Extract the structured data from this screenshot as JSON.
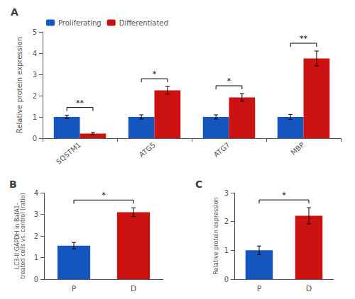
{
  "chart_data": [
    {
      "type": "bar",
      "title": "A",
      "categories": [
        "SQSTM1",
        "ATG5",
        "ATG7",
        "MBP"
      ],
      "series": [
        {
          "name": "Proliferating",
          "color": "#1555c0",
          "values": [
            1.0,
            1.0,
            1.0,
            1.0
          ],
          "errors": [
            0.08,
            0.1,
            0.1,
            0.12
          ]
        },
        {
          "name": "Differentiated",
          "color": "#cc1111",
          "values": [
            0.22,
            2.25,
            1.92,
            3.75
          ],
          "errors": [
            0.05,
            0.18,
            0.18,
            0.35
          ]
        }
      ],
      "annotations": [
        "**",
        "*",
        "*",
        "**"
      ],
      "ylabel": "Relative protein expression",
      "ylim": [
        0,
        5
      ],
      "yticks": [
        0,
        1,
        2,
        3,
        4,
        5
      ],
      "legend": "upper left",
      "grid": false
    },
    {
      "type": "bar",
      "title": "B",
      "categories": [
        "P",
        "D"
      ],
      "values": [
        1.55,
        3.1
      ],
      "errors": [
        0.15,
        0.2
      ],
      "colors": [
        "#1555c0",
        "#cc1111"
      ],
      "annotations": [
        "*"
      ],
      "ylabel": "LC3-II:GAPDH in BafA1-\ntreated cells vs. control (ratio)",
      "ylim": [
        0,
        4
      ],
      "yticks": [
        0,
        1,
        2,
        3,
        4
      ],
      "grid": false
    },
    {
      "type": "bar",
      "title": "C",
      "categories": [
        "P",
        "D"
      ],
      "values": [
        1.0,
        2.2
      ],
      "errors": [
        0.15,
        0.28
      ],
      "colors": [
        "#1555c0",
        "#cc1111"
      ],
      "annotations": [
        "*"
      ],
      "ylabel": "Relative protein expression",
      "ylim": [
        0,
        3
      ],
      "yticks": [
        0,
        1,
        2,
        3
      ],
      "grid": false
    }
  ]
}
